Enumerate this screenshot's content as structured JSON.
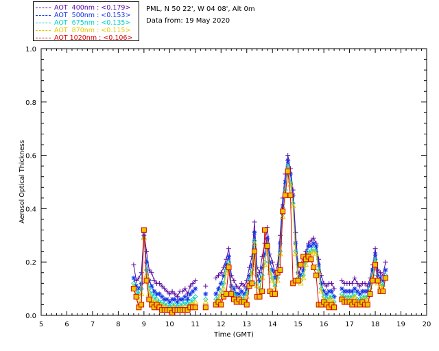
{
  "info": {
    "site_line": "PML, N 50 22', W 04 08', Alt 0m",
    "date_line": "Data from: 19 May 2020"
  },
  "legend": [
    {
      "label": "AOT  400nm : <0.179>",
      "color": "#5a0aa0"
    },
    {
      "label": "AOT  500nm : <0.153>",
      "color": "#1433e6"
    },
    {
      "label": "AOT  675nm : <0.135>",
      "color": "#00d2c8"
    },
    {
      "label": "AOT  870nm : <0.115>",
      "color": "#e6c800"
    },
    {
      "label": "AOT 1020nm : <0.106>",
      "color": "#dc0000"
    }
  ],
  "chart_data": {
    "type": "line",
    "xlabel": "Time (GMT)",
    "ylabel": "Aerosol Optical Thickness",
    "xlim": [
      5,
      20
    ],
    "ylim": [
      0.0,
      1.0
    ],
    "xticks": [
      "5",
      "6",
      "7",
      "8",
      "9",
      "10",
      "11",
      "12",
      "13",
      "14",
      "15",
      "16",
      "17",
      "18",
      "19",
      "20"
    ],
    "yticks": [
      "0.0",
      "0.2",
      "0.4",
      "0.6",
      "0.8",
      "1.0"
    ],
    "grid": false,
    "x": [
      8.6,
      8.7,
      8.8,
      8.9,
      9.0,
      9.1,
      9.2,
      9.3,
      9.4,
      9.5,
      9.6,
      9.7,
      9.8,
      9.9,
      10.0,
      10.1,
      10.2,
      10.3,
      10.4,
      10.5,
      10.6,
      10.7,
      10.8,
      10.9,
      11.0,
      11.4,
      11.8,
      11.9,
      12.0,
      12.1,
      12.2,
      12.3,
      12.4,
      12.5,
      12.6,
      12.7,
      12.8,
      12.9,
      13.0,
      13.1,
      13.2,
      13.3,
      13.4,
      13.5,
      13.6,
      13.7,
      13.8,
      13.9,
      14.0,
      14.1,
      14.2,
      14.3,
      14.4,
      14.5,
      14.6,
      14.7,
      14.8,
      14.9,
      15.0,
      15.1,
      15.2,
      15.3,
      15.4,
      15.5,
      15.6,
      15.7,
      15.8,
      15.9,
      16.0,
      16.1,
      16.2,
      16.3,
      16.4,
      16.7,
      16.8,
      16.9,
      17.0,
      17.1,
      17.2,
      17.3,
      17.4,
      17.5,
      17.6,
      17.7,
      17.8,
      17.9,
      18.0,
      18.1,
      18.2,
      18.3,
      18.4
    ],
    "series": [
      {
        "name": "AOT  400nm : <0.179>",
        "marker": "plus",
        "values": [
          0.19,
          0.13,
          0.14,
          0.16,
          0.31,
          0.24,
          0.17,
          0.16,
          0.13,
          0.12,
          0.12,
          0.11,
          0.1,
          0.09,
          0.08,
          0.09,
          0.08,
          0.07,
          0.09,
          0.09,
          0.1,
          0.08,
          0.11,
          0.12,
          0.13,
          0.11,
          0.14,
          0.15,
          0.16,
          0.18,
          0.21,
          0.25,
          0.15,
          0.13,
          0.11,
          0.1,
          0.12,
          0.11,
          0.13,
          0.18,
          0.22,
          0.35,
          0.18,
          0.16,
          0.22,
          0.27,
          0.33,
          0.23,
          0.2,
          0.16,
          0.19,
          0.3,
          0.44,
          0.53,
          0.6,
          0.55,
          0.47,
          0.31,
          0.19,
          0.18,
          0.2,
          0.24,
          0.27,
          0.28,
          0.29,
          0.27,
          0.21,
          0.15,
          0.12,
          0.11,
          0.12,
          0.12,
          0.1,
          0.13,
          0.12,
          0.12,
          0.12,
          0.12,
          0.14,
          0.12,
          0.11,
          0.12,
          0.12,
          0.11,
          0.14,
          0.19,
          0.25,
          0.17,
          0.16,
          0.15,
          0.2
        ]
      },
      {
        "name": "AOT  500nm : <0.153>",
        "marker": "star",
        "values": [
          0.14,
          0.11,
          0.1,
          0.12,
          0.3,
          0.2,
          0.13,
          0.11,
          0.09,
          0.08,
          0.08,
          0.07,
          0.06,
          0.06,
          0.05,
          0.06,
          0.06,
          0.05,
          0.06,
          0.06,
          0.07,
          0.06,
          0.08,
          0.09,
          0.1,
          0.08,
          0.08,
          0.1,
          0.12,
          0.15,
          0.19,
          0.22,
          0.11,
          0.1,
          0.08,
          0.08,
          0.09,
          0.08,
          0.1,
          0.15,
          0.19,
          0.31,
          0.15,
          0.13,
          0.18,
          0.23,
          0.29,
          0.2,
          0.17,
          0.14,
          0.16,
          0.27,
          0.41,
          0.5,
          0.58,
          0.53,
          0.45,
          0.27,
          0.16,
          0.15,
          0.17,
          0.22,
          0.26,
          0.26,
          0.27,
          0.26,
          0.19,
          0.12,
          0.09,
          0.08,
          0.09,
          0.09,
          0.07,
          0.1,
          0.09,
          0.09,
          0.09,
          0.09,
          0.1,
          0.09,
          0.08,
          0.09,
          0.09,
          0.09,
          0.12,
          0.17,
          0.23,
          0.15,
          0.14,
          0.13,
          0.17
        ]
      },
      {
        "name": "AOT  675nm : <0.135>",
        "marker": "diamond",
        "values": [
          0.12,
          0.09,
          0.08,
          0.1,
          0.29,
          0.17,
          0.1,
          0.08,
          0.07,
          0.06,
          0.05,
          0.05,
          0.04,
          0.04,
          0.03,
          0.04,
          0.04,
          0.03,
          0.04,
          0.04,
          0.05,
          0.04,
          0.05,
          0.06,
          0.07,
          0.06,
          0.06,
          0.07,
          0.09,
          0.12,
          0.17,
          0.2,
          0.09,
          0.08,
          0.07,
          0.06,
          0.07,
          0.06,
          0.08,
          0.13,
          0.17,
          0.28,
          0.12,
          0.1,
          0.15,
          0.2,
          0.27,
          0.17,
          0.14,
          0.11,
          0.14,
          0.24,
          0.38,
          0.47,
          0.56,
          0.5,
          0.42,
          0.24,
          0.14,
          0.13,
          0.15,
          0.2,
          0.24,
          0.24,
          0.25,
          0.24,
          0.17,
          0.1,
          0.07,
          0.06,
          0.07,
          0.07,
          0.05,
          0.08,
          0.07,
          0.07,
          0.07,
          0.07,
          0.08,
          0.06,
          0.06,
          0.07,
          0.07,
          0.07,
          0.1,
          0.15,
          0.21,
          0.13,
          0.12,
          0.11,
          0.15
        ]
      },
      {
        "name": "AOT  870nm : <0.115>",
        "marker": "triangle",
        "values": [
          0.11,
          0.07,
          0.06,
          0.08,
          0.29,
          0.15,
          0.08,
          0.06,
          0.05,
          0.05,
          0.04,
          0.04,
          0.03,
          0.03,
          0.02,
          0.03,
          0.03,
          0.02,
          0.03,
          0.03,
          0.03,
          0.03,
          0.04,
          0.04,
          0.05,
          0.05,
          0.05,
          0.06,
          0.08,
          0.1,
          0.16,
          0.19,
          0.08,
          0.07,
          0.06,
          0.05,
          0.06,
          0.05,
          0.07,
          0.12,
          0.16,
          0.27,
          0.11,
          0.09,
          0.14,
          0.19,
          0.26,
          0.16,
          0.13,
          0.1,
          0.13,
          0.23,
          0.37,
          0.46,
          0.55,
          0.49,
          0.41,
          0.23,
          0.13,
          0.12,
          0.14,
          0.19,
          0.23,
          0.23,
          0.24,
          0.23,
          0.16,
          0.09,
          0.06,
          0.05,
          0.06,
          0.06,
          0.04,
          0.07,
          0.06,
          0.06,
          0.06,
          0.06,
          0.07,
          0.05,
          0.05,
          0.06,
          0.06,
          0.06,
          0.09,
          0.14,
          0.2,
          0.12,
          0.11,
          0.1,
          0.14
        ]
      },
      {
        "name": "AOT 1020nm : <0.106>",
        "marker": "square",
        "values": [
          0.1,
          0.07,
          0.03,
          0.04,
          0.32,
          0.13,
          0.06,
          0.04,
          0.03,
          0.04,
          0.03,
          0.02,
          0.02,
          0.02,
          0.02,
          0.01,
          0.02,
          0.02,
          0.02,
          0.02,
          0.02,
          0.02,
          0.03,
          0.03,
          0.03,
          0.03,
          0.04,
          0.05,
          0.04,
          0.07,
          0.08,
          0.18,
          0.08,
          0.06,
          0.05,
          0.06,
          0.05,
          0.05,
          0.04,
          0.11,
          0.12,
          0.24,
          0.07,
          0.07,
          0.09,
          0.32,
          0.26,
          0.09,
          0.08,
          0.08,
          0.16,
          0.17,
          0.39,
          0.45,
          0.54,
          0.45,
          0.12,
          0.13,
          0.13,
          0.19,
          0.22,
          0.21,
          0.22,
          0.21,
          0.18,
          0.15,
          0.04,
          0.04,
          0.05,
          0.04,
          0.03,
          0.04,
          0.03,
          0.06,
          0.05,
          0.05,
          0.05,
          0.04,
          0.05,
          0.04,
          0.04,
          0.05,
          0.04,
          0.04,
          0.08,
          0.13,
          0.19,
          0.13,
          0.09,
          0.09,
          0.14
        ]
      }
    ]
  }
}
